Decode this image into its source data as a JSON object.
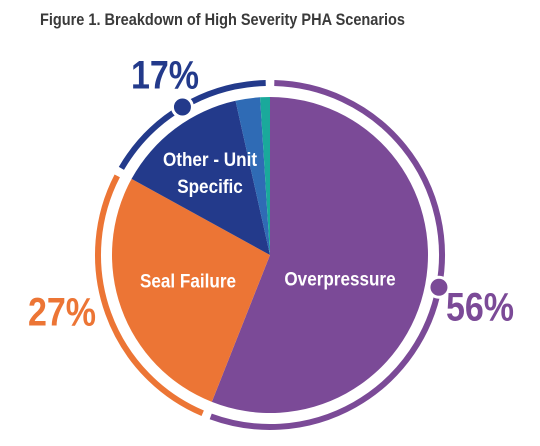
{
  "chart_data": {
    "type": "pie",
    "title": "Figure 1. Breakdown of High Severity PHA Scenarios",
    "categories": [
      "Overpressure",
      "Seal Failure",
      "Other - Unit Specific",
      null,
      null
    ],
    "values": [
      56,
      27,
      13.5,
      2.5,
      1
    ],
    "colors": [
      "#7b4a97",
      "#ec7535",
      "#233a8b",
      "#2f6bb5",
      "#1aa99b"
    ],
    "rings": [
      {
        "value": 56,
        "label": "56%",
        "color": "#7b4a97",
        "dot": true
      },
      {
        "value": 27,
        "label": "27%",
        "color": "#ec7535",
        "dot": false
      },
      {
        "value": 17,
        "label": "17%",
        "color": "#233a8b",
        "dot": true
      }
    ]
  }
}
